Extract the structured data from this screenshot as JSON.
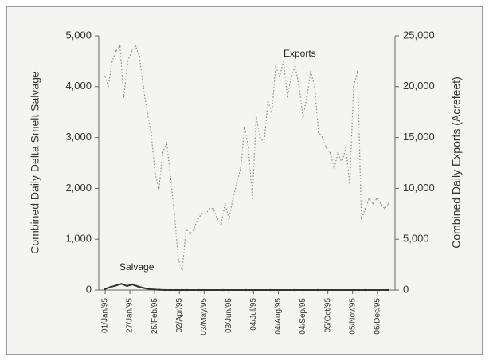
{
  "chart_data": {
    "type": "line",
    "title": "",
    "ylabel_left": "Combined Daily Delta Smelt Salvage",
    "ylabel_right": "Combined Daily Exports (Acrefeet)",
    "ylim_left": [
      0,
      5000
    ],
    "ylim_right": [
      0,
      25000
    ],
    "yticks_left": [
      "0",
      "1,000",
      "2,000",
      "3,000",
      "4,000",
      "5,000"
    ],
    "yticks_right": [
      "0",
      "5,000",
      "10,000",
      "15,000",
      "20,000",
      "25,000"
    ],
    "xticks": [
      "01/Jan/95",
      "27/Jan/95",
      "25/Feb/95",
      "02/Apr/95",
      "03/May/95",
      "03/Jun/95",
      "04/Jul/95",
      "04/Aug/95",
      "04/Sep/95",
      "05/Oct/95",
      "05/Nov/95",
      "06/Dec/95"
    ],
    "annotations": {
      "exports": "Exports",
      "salvage": "Salvage"
    },
    "series": [
      {
        "name": "Exports",
        "axis": "right",
        "style": "dotted",
        "x": [
          "1995-01-01",
          "1995-01-05",
          "1995-01-10",
          "1995-01-15",
          "1995-01-20",
          "1995-01-25",
          "1995-01-30",
          "1995-02-04",
          "1995-02-09",
          "1995-02-14",
          "1995-02-19",
          "1995-02-24",
          "1995-03-01",
          "1995-03-06",
          "1995-03-11",
          "1995-03-16",
          "1995-03-21",
          "1995-03-26",
          "1995-03-31",
          "1995-04-05",
          "1995-04-10",
          "1995-04-15",
          "1995-04-20",
          "1995-04-25",
          "1995-04-30",
          "1995-05-05",
          "1995-05-10",
          "1995-05-15",
          "1995-05-20",
          "1995-05-25",
          "1995-05-30",
          "1995-06-04",
          "1995-06-09",
          "1995-06-14",
          "1995-06-19",
          "1995-06-24",
          "1995-06-29",
          "1995-07-04",
          "1995-07-09",
          "1995-07-14",
          "1995-07-19",
          "1995-07-24",
          "1995-07-29",
          "1995-08-03",
          "1995-08-08",
          "1995-08-13",
          "1995-08-18",
          "1995-08-23",
          "1995-08-28",
          "1995-09-02",
          "1995-09-07",
          "1995-09-12",
          "1995-09-17",
          "1995-09-22",
          "1995-09-27",
          "1995-10-02",
          "1995-10-07",
          "1995-10-12",
          "1995-10-17",
          "1995-10-22",
          "1995-10-27",
          "1995-11-01",
          "1995-11-06",
          "1995-11-11",
          "1995-11-16",
          "1995-11-21",
          "1995-11-26",
          "1995-12-01",
          "1995-12-06",
          "1995-12-11",
          "1995-12-16",
          "1995-12-21",
          "1995-12-26",
          "1995-12-31"
        ],
        "values": [
          21000,
          20000,
          22500,
          23500,
          24000,
          19000,
          22500,
          23500,
          24000,
          23000,
          20000,
          17500,
          15500,
          11500,
          10000,
          13500,
          14500,
          11000,
          7500,
          3000,
          2000,
          6000,
          5500,
          6000,
          7000,
          7500,
          7500,
          8000,
          8000,
          7000,
          6500,
          8500,
          7000,
          9000,
          10500,
          12000,
          16000,
          14000,
          9000,
          17000,
          15000,
          14500,
          18500,
          17500,
          22000,
          21000,
          22500,
          19000,
          21000,
          22000,
          20000,
          17000,
          19000,
          21500,
          20000,
          15500,
          15000,
          14000,
          13500,
          12000,
          13500,
          12500,
          14000,
          10500,
          20000,
          21500,
          7000,
          8000,
          9000,
          8500,
          9000,
          8500,
          8000,
          8500
        ]
      },
      {
        "name": "Salvage",
        "axis": "left",
        "style": "solid",
        "x": [
          "1995-01-01",
          "1995-01-08",
          "1995-01-15",
          "1995-01-22",
          "1995-01-29",
          "1995-02-05",
          "1995-02-12",
          "1995-02-19",
          "1995-02-26",
          "1995-03-05",
          "1995-03-12",
          "1995-03-19",
          "1995-03-26",
          "1995-04-02",
          "1995-04-09",
          "1995-04-16",
          "1995-05-01",
          "1995-06-01",
          "1995-07-01",
          "1995-08-01",
          "1995-09-01",
          "1995-10-01",
          "1995-11-01",
          "1995-12-01",
          "1995-12-31"
        ],
        "values": [
          20,
          60,
          90,
          120,
          80,
          110,
          70,
          40,
          20,
          10,
          5,
          0,
          0,
          0,
          0,
          0,
          0,
          0,
          0,
          0,
          0,
          0,
          0,
          0,
          0
        ]
      }
    ]
  }
}
